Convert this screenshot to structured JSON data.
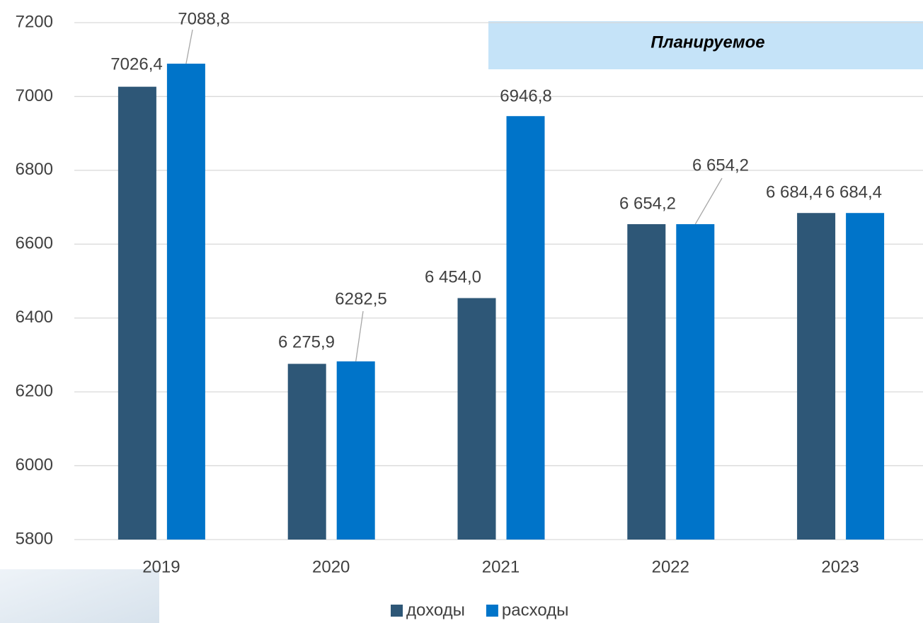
{
  "chart_data": {
    "type": "bar",
    "annotation": "Планируемое",
    "categories": [
      "2019",
      "2020",
      "2021",
      "2022",
      "2023"
    ],
    "series": [
      {
        "name": "доходы",
        "color": "#2e5777",
        "values": [
          7026.4,
          6275.9,
          6454.0,
          6654.2,
          6684.4
        ],
        "value_labels": [
          "7026,4",
          "6 275,9",
          "6 454,0",
          "6 654,2",
          "6 684,4"
        ]
      },
      {
        "name": "расходы",
        "color": "#0074c9",
        "values": [
          7088.8,
          6282.5,
          6946.8,
          6654.2,
          6684.4
        ],
        "value_labels": [
          "7088,8",
          "6282,5",
          "6946,8",
          "6 654,2",
          "6 684,4"
        ]
      }
    ],
    "ylim": [
      5800,
      7200
    ],
    "yticks": [
      5800,
      6000,
      6200,
      6400,
      6600,
      6800,
      7000,
      7200
    ],
    "grid": true,
    "legend": "bottom"
  }
}
